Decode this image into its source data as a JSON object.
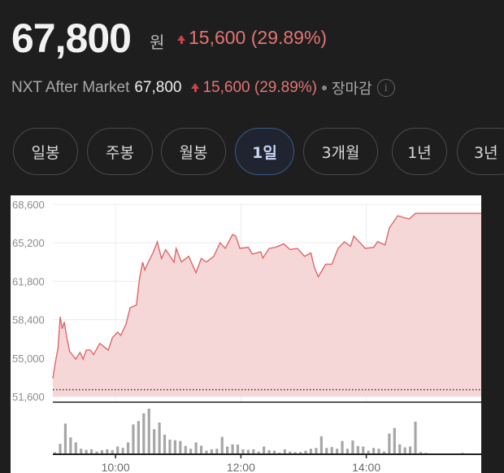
{
  "quote": {
    "price": "67,800",
    "currency": "원",
    "change": "15,600",
    "change_pct": "(29.89%)",
    "direction": "up",
    "up_color": "#e37474"
  },
  "after_market": {
    "label": "NXT After Market",
    "price": "67,800",
    "change": "15,600",
    "change_pct": "(29.89%)",
    "status": "장마감",
    "info_icon": "info-icon"
  },
  "tabs": [
    {
      "label": "일봉",
      "selected": false
    },
    {
      "label": "주봉",
      "selected": false
    },
    {
      "label": "월봉",
      "selected": false
    },
    {
      "label": "1일",
      "selected": true
    },
    {
      "label": "3개월",
      "selected": false
    },
    {
      "label": "1년",
      "selected": false
    },
    {
      "label": "3년",
      "selected": false
    }
  ],
  "chart_data": {
    "type": "area",
    "line_color": "#e06666",
    "fill_color": "#f6d7d8",
    "grid": true,
    "prev_close": 52200,
    "ylim": [
      51600,
      68600
    ],
    "yticks": [
      "68,600",
      "65,200",
      "61,800",
      "58,400",
      "55,000",
      "51,600"
    ],
    "ytick_values": [
      68600,
      65200,
      61800,
      58400,
      55000,
      51600
    ],
    "xlim": [
      "09:00",
      "15:50"
    ],
    "xticks": [
      "10:00",
      "12:00",
      "14:00"
    ],
    "price_series": [
      [
        "09:00",
        53200
      ],
      [
        "09:02",
        54400
      ],
      [
        "09:05",
        55900
      ],
      [
        "09:07",
        58650
      ],
      [
        "09:09",
        57600
      ],
      [
        "09:11",
        58200
      ],
      [
        "09:13",
        57000
      ],
      [
        "09:16",
        55600
      ],
      [
        "09:22",
        54900
      ],
      [
        "09:26",
        55500
      ],
      [
        "09:29",
        54900
      ],
      [
        "09:32",
        55700
      ],
      [
        "09:36",
        55700
      ],
      [
        "09:39",
        55300
      ],
      [
        "09:45",
        56300
      ],
      [
        "09:53",
        55700
      ],
      [
        "09:57",
        56800
      ],
      [
        "10:02",
        57300
      ],
      [
        "10:05",
        57000
      ],
      [
        "10:10",
        58000
      ],
      [
        "10:14",
        59450
      ],
      [
        "10:20",
        59700
      ],
      [
        "10:23",
        62050
      ],
      [
        "10:26",
        63480
      ],
      [
        "10:28",
        62800
      ],
      [
        "10:31",
        63400
      ],
      [
        "10:36",
        64350
      ],
      [
        "10:40",
        65290
      ],
      [
        "10:44",
        63800
      ],
      [
        "10:48",
        64600
      ],
      [
        "10:56",
        63480
      ],
      [
        "10:58",
        64700
      ],
      [
        "11:03",
        63500
      ],
      [
        "11:10",
        64000
      ],
      [
        "11:17",
        62550
      ],
      [
        "11:22",
        63800
      ],
      [
        "11:27",
        63500
      ],
      [
        "11:34",
        64000
      ],
      [
        "11:40",
        65200
      ],
      [
        "11:45",
        64700
      ],
      [
        "11:52",
        65930
      ],
      [
        "11:55",
        65800
      ],
      [
        "11:59",
        64700
      ],
      [
        "12:07",
        64800
      ],
      [
        "12:11",
        64200
      ],
      [
        "12:19",
        64400
      ],
      [
        "12:21",
        63850
      ],
      [
        "12:27",
        64700
      ],
      [
        "12:33",
        64800
      ],
      [
        "12:41",
        65100
      ],
      [
        "12:47",
        64600
      ],
      [
        "12:54",
        64700
      ],
      [
        "13:01",
        64000
      ],
      [
        "13:07",
        64300
      ],
      [
        "13:10",
        63120
      ],
      [
        "13:14",
        62190
      ],
      [
        "13:21",
        63300
      ],
      [
        "13:27",
        63300
      ],
      [
        "13:33",
        64700
      ],
      [
        "13:39",
        65290
      ],
      [
        "13:45",
        64900
      ],
      [
        "13:48",
        65790
      ],
      [
        "13:53",
        65300
      ],
      [
        "13:59",
        64700
      ],
      [
        "14:07",
        64800
      ],
      [
        "14:11",
        65300
      ],
      [
        "14:18",
        65000
      ],
      [
        "14:22",
        66510
      ],
      [
        "14:25",
        66900
      ],
      [
        "14:30",
        67590
      ],
      [
        "14:41",
        67300
      ],
      [
        "14:47",
        67800
      ],
      [
        "15:50",
        67800
      ]
    ],
    "volume_start": "09:02",
    "volume_interval_min": 5,
    "volume_color": "#a6a6a6",
    "volume_relative": [
      8,
      38,
      111,
      61,
      43,
      20,
      16,
      18,
      10,
      15,
      18,
      15,
      28,
      23,
      43,
      108,
      120,
      148,
      165,
      91,
      115,
      71,
      53,
      51,
      48,
      30,
      20,
      43,
      31,
      13,
      18,
      20,
      63,
      28,
      36,
      35,
      18,
      16,
      18,
      10,
      28,
      15,
      13,
      6,
      18,
      10,
      8,
      8,
      13,
      20,
      23,
      65,
      23,
      26,
      20,
      48,
      20,
      50,
      30,
      28,
      13,
      23,
      20,
      10,
      75,
      95,
      36,
      25,
      28,
      118,
      8,
      5,
      3,
      2,
      2,
      2,
      2,
      0,
      5
    ]
  }
}
